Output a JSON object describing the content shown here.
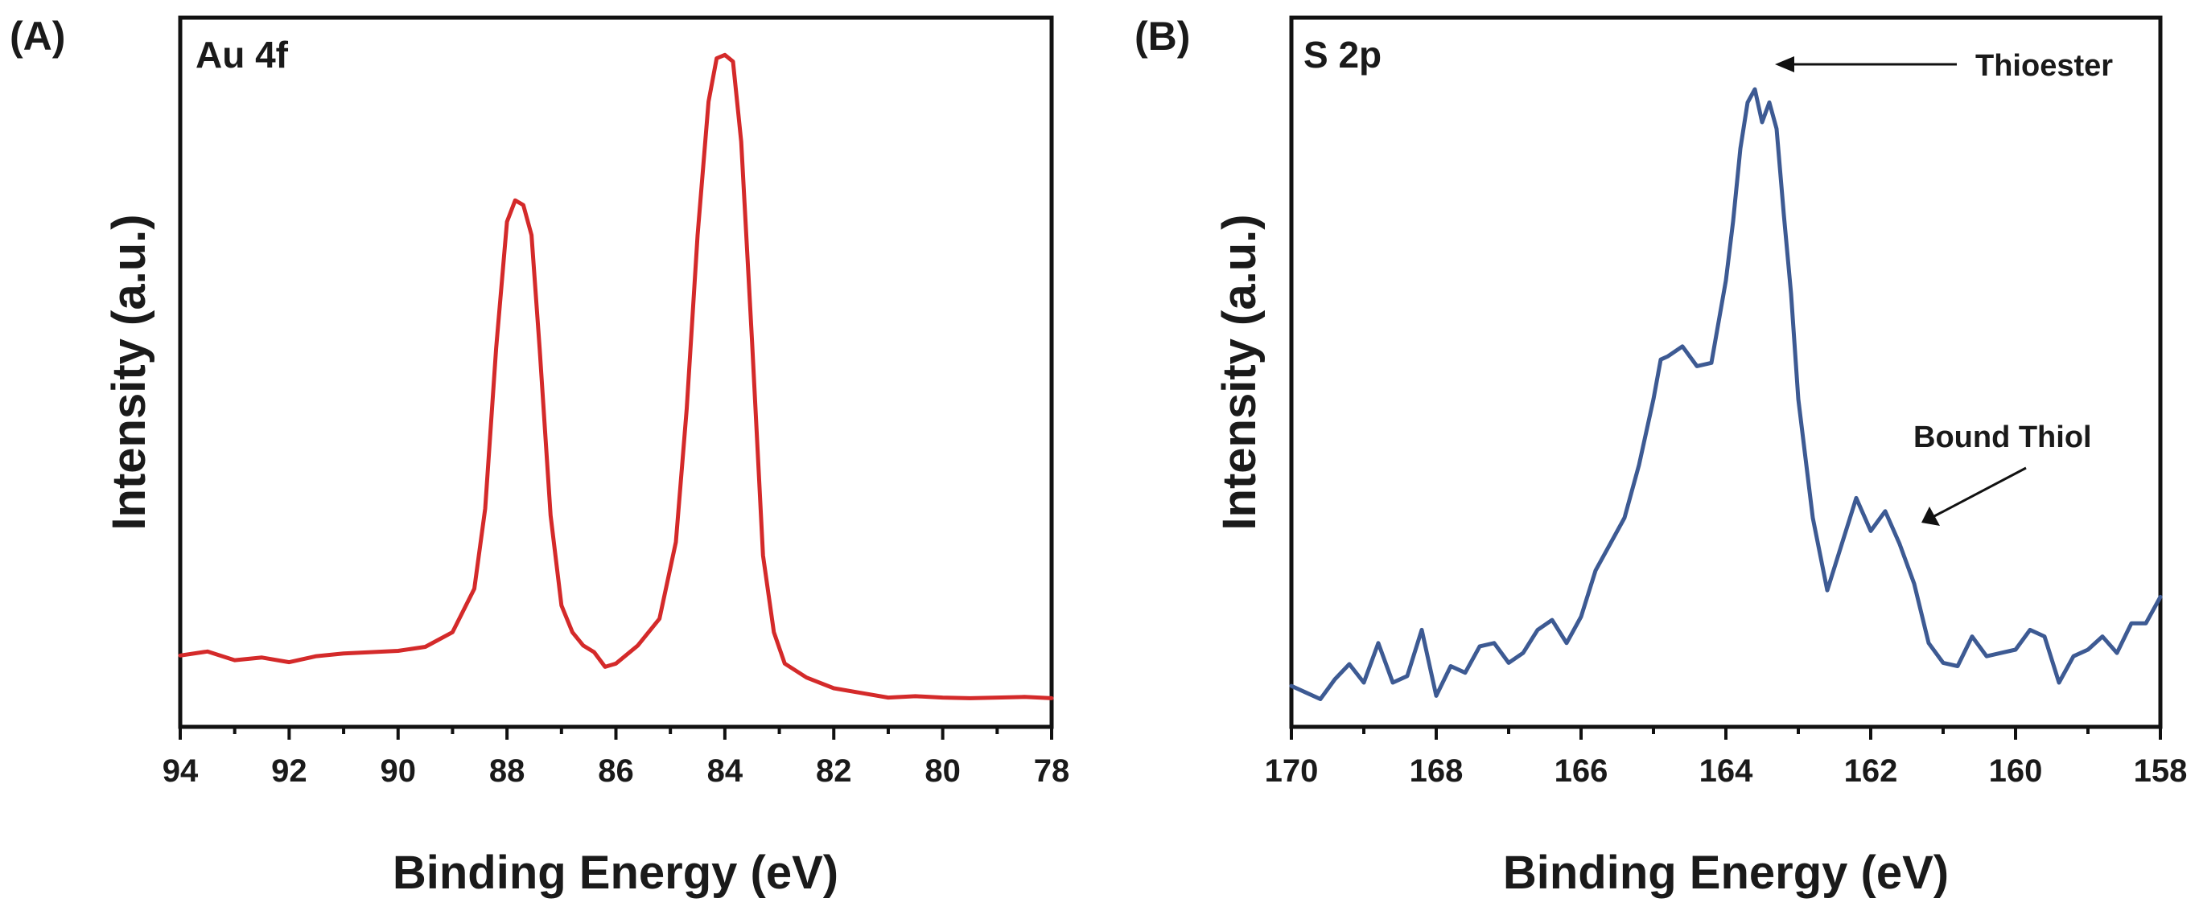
{
  "panels": [
    {
      "panel_label": "(A)",
      "chart_title": "Au 4f",
      "xlabel": "Binding Energy (eV)",
      "ylabel": "Intensity (a.u.)"
    },
    {
      "panel_label": "(B)",
      "chart_title": "S 2p",
      "xlabel": "Binding Energy (eV)",
      "ylabel": "Intensity (a.u.)",
      "annotations": [
        "Thioester",
        "Bound Thiol"
      ]
    }
  ],
  "chart_data": [
    {
      "type": "line",
      "title": "Au 4f",
      "xlabel": "Binding Energy (eV)",
      "ylabel": "Intensity (a.u.)",
      "xlim": [
        94,
        78
      ],
      "x_reversed": true,
      "ylim": [
        0,
        100
      ],
      "y_ticks_shown": false,
      "xticks": [
        "94",
        "92",
        "90",
        "88",
        "86",
        "84",
        "82",
        "80",
        "78"
      ],
      "color": "#d42a2a",
      "series": [
        {
          "name": "Au 4f",
          "x": [
            94.0,
            93.5,
            93.0,
            92.5,
            92.0,
            91.5,
            91.0,
            90.5,
            90.0,
            89.5,
            89.0,
            88.6,
            88.4,
            88.2,
            88.0,
            87.85,
            87.7,
            87.55,
            87.4,
            87.2,
            87.0,
            86.8,
            86.6,
            86.4,
            86.2,
            86.0,
            85.6,
            85.2,
            84.9,
            84.7,
            84.5,
            84.3,
            84.15,
            84.0,
            83.85,
            83.7,
            83.5,
            83.3,
            83.1,
            82.9,
            82.5,
            82.0,
            81.5,
            81.0,
            80.5,
            80.0,
            79.5,
            79.0,
            78.5,
            78.0
          ],
          "y": [
            9.0,
            9.6,
            8.3,
            8.7,
            8.0,
            8.9,
            9.3,
            9.5,
            9.7,
            10.3,
            12.5,
            19.0,
            31.0,
            55.0,
            74.0,
            77.2,
            76.5,
            72.0,
            55.0,
            30.0,
            16.5,
            12.5,
            10.5,
            9.5,
            7.3,
            7.8,
            10.5,
            14.5,
            26.0,
            46.0,
            72.0,
            92.0,
            98.5,
            99.0,
            98.0,
            86.0,
            56.0,
            24.0,
            12.5,
            7.8,
            5.7,
            4.1,
            3.4,
            2.7,
            2.9,
            2.7,
            2.6,
            2.7,
            2.8,
            2.6
          ]
        }
      ]
    },
    {
      "type": "line",
      "title": "S 2p",
      "xlabel": "Binding Energy (eV)",
      "ylabel": "Intensity (a.u.)",
      "xlim": [
        170,
        158
      ],
      "x_reversed": true,
      "ylim": [
        0,
        100
      ],
      "y_ticks_shown": false,
      "xticks": [
        "170",
        "168",
        "166",
        "164",
        "162",
        "160",
        "158"
      ],
      "color": "#3d5a93",
      "annotations": [
        {
          "text": "Thioester",
          "x": 163.5
        },
        {
          "text": "Bound Thiol",
          "x": 161.6
        }
      ],
      "series": [
        {
          "name": "S 2p",
          "x": [
            170.0,
            169.8,
            169.6,
            169.4,
            169.2,
            169.0,
            168.8,
            168.6,
            168.4,
            168.2,
            168.0,
            167.8,
            167.6,
            167.4,
            167.2,
            167.0,
            166.8,
            166.6,
            166.4,
            166.2,
            166.0,
            165.8,
            165.6,
            165.4,
            165.2,
            165.0,
            164.9,
            164.8,
            164.6,
            164.4,
            164.2,
            164.0,
            163.9,
            163.8,
            163.7,
            163.6,
            163.5,
            163.4,
            163.3,
            163.2,
            163.1,
            163.0,
            162.8,
            162.6,
            162.4,
            162.2,
            162.0,
            161.8,
            161.6,
            161.4,
            161.2,
            161.0,
            160.8,
            160.6,
            160.4,
            160.2,
            160.0,
            159.8,
            159.6,
            159.4,
            159.2,
            159.0,
            158.8,
            158.6,
            158.4,
            158.2,
            158.0
          ],
          "y": [
            4.5,
            3.5,
            2.5,
            5.5,
            7.8,
            5.0,
            11.0,
            5.0,
            6.0,
            13.0,
            3.0,
            7.5,
            6.5,
            10.5,
            11.0,
            8.0,
            9.5,
            13.0,
            14.5,
            11.0,
            15.0,
            22.0,
            26.0,
            30.0,
            38.0,
            48.0,
            54.0,
            54.5,
            56.0,
            53.0,
            53.5,
            66.0,
            75.0,
            86.0,
            93.0,
            95.0,
            90.0,
            93.0,
            89.0,
            76.0,
            64.0,
            48.0,
            30.0,
            19.0,
            26.0,
            33.0,
            28.0,
            31.0,
            26.0,
            20.0,
            11.0,
            8.0,
            7.5,
            12.0,
            9.0,
            9.5,
            10.0,
            13.0,
            12.0,
            5.0,
            9.0,
            10.0,
            12.0,
            9.5,
            14.0,
            14.0,
            18.0
          ]
        }
      ]
    }
  ]
}
